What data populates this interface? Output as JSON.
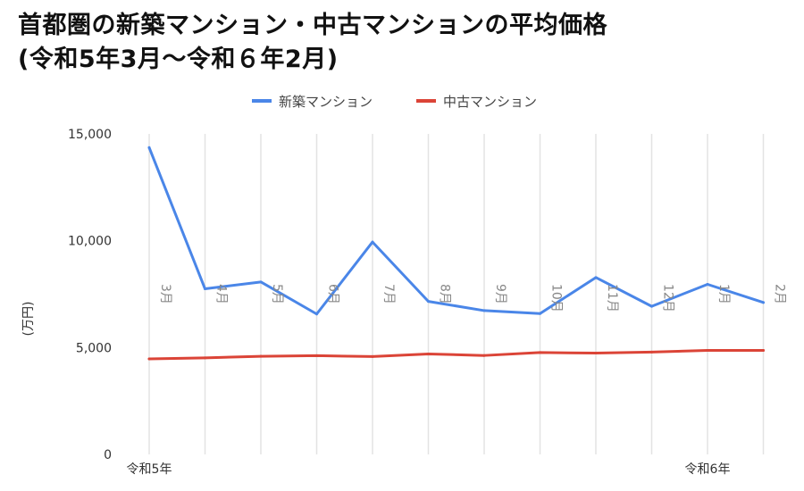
{
  "title": {
    "line1": "首都圏の新築マンション・中古マンションの平均価格",
    "line2": "(令和5年3月〜令和６年2月)"
  },
  "colors": {
    "series_new": "#4a86e8",
    "series_used": "#db4437"
  },
  "chart_data": {
    "type": "line",
    "ylabel": "(万円)",
    "ylim": [
      0,
      15000
    ],
    "y_ticks": [
      "0",
      "5,000",
      "10,000",
      "15,000"
    ],
    "x": [
      "3月",
      "4月",
      "5月",
      "6月",
      "7月",
      "8月",
      "9月",
      "10月",
      "11月",
      "12月",
      "1月",
      "2月"
    ],
    "year_labels": [
      {
        "index": 0,
        "label": "令和5年"
      },
      {
        "index": 10,
        "label": "令和6年"
      }
    ],
    "legend_position": "top-center",
    "grid": "vertical",
    "series": [
      {
        "name": "新築マンション",
        "color": "#4a86e8",
        "values": [
          14360,
          7750,
          8070,
          6570,
          9940,
          7160,
          6730,
          6590,
          8280,
          6930,
          7960,
          7110
        ]
      },
      {
        "name": "中古マンション",
        "color": "#db4437",
        "values": [
          4470,
          4520,
          4590,
          4620,
          4580,
          4700,
          4630,
          4770,
          4740,
          4790,
          4870,
          4870
        ]
      }
    ]
  }
}
